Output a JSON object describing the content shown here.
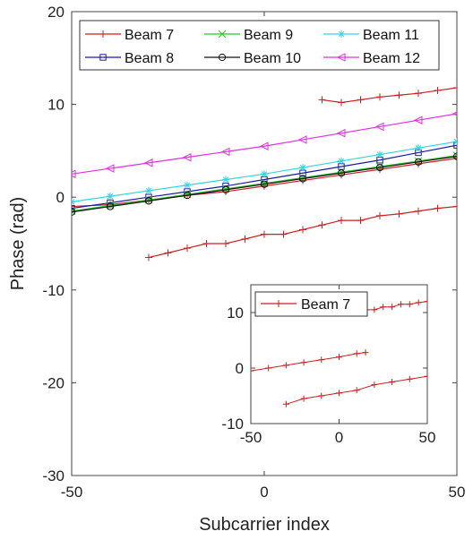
{
  "chart_data": [
    {
      "type": "line",
      "title": "",
      "xlabel": "Subcarrier index",
      "ylabel": "Phase (rad)",
      "xlim": [
        -50,
        50
      ],
      "ylim": [
        -30,
        20
      ],
      "xticks": [
        "-50",
        "0",
        "50"
      ],
      "yticks": [
        "-30",
        "-20",
        "-10",
        "0",
        "10",
        "20"
      ],
      "legend_position": "top",
      "grid": false,
      "series": [
        {
          "name": "Beam 7",
          "color": "#cc1f1f",
          "marker": "plus",
          "segments": [
            {
              "x": [
                -50,
                -40,
                -30,
                -20,
                -10,
                0,
                10,
                20,
                30,
                40,
                50
              ],
              "y": [
                -1,
                -0.8,
                -0.3,
                0.2,
                0.6,
                1.2,
                1.8,
                2.4,
                3.0,
                3.6,
                4.2
              ]
            },
            {
              "x": [
                -30,
                -25,
                -20,
                -15,
                -10,
                -5,
                0,
                5,
                10,
                15,
                20,
                25,
                30,
                35,
                40,
                45,
                50
              ],
              "y": [
                -6.5,
                -6,
                -5.5,
                -5,
                -5,
                -4.5,
                -4,
                -4,
                -3.5,
                -3,
                -2.5,
                -2.5,
                -2,
                -1.8,
                -1.5,
                -1.2,
                -1
              ]
            },
            {
              "x": [
                15,
                20,
                25,
                30,
                35,
                40,
                45,
                50
              ],
              "y": [
                10.5,
                10.2,
                10.5,
                10.8,
                11,
                11.2,
                11.5,
                11.8
              ]
            }
          ]
        },
        {
          "name": "Beam 8",
          "color": "#1a1aa6",
          "marker": "square",
          "segments": [
            {
              "x": [
                -50,
                -40,
                -30,
                -20,
                -10,
                0,
                10,
                20,
                30,
                40,
                50
              ],
              "y": [
                -1.2,
                -0.6,
                0,
                0.6,
                1.2,
                1.9,
                2.6,
                3.3,
                4.0,
                4.8,
                5.6
              ]
            }
          ]
        },
        {
          "name": "Beam 9",
          "color": "#2ec22e",
          "marker": "x",
          "segments": [
            {
              "x": [
                -50,
                -40,
                -30,
                -20,
                -10,
                0,
                10,
                20,
                30,
                40,
                50
              ],
              "y": [
                -1.5,
                -0.9,
                -0.3,
                0.3,
                0.9,
                1.5,
                2.1,
                2.7,
                3.3,
                3.9,
                4.5
              ]
            }
          ]
        },
        {
          "name": "Beam 10",
          "color": "#111111",
          "marker": "circle",
          "segments": [
            {
              "x": [
                -50,
                -40,
                -30,
                -20,
                -10,
                0,
                10,
                20,
                30,
                40,
                50
              ],
              "y": [
                -1.6,
                -1.0,
                -0.4,
                0.2,
                0.8,
                1.4,
                2.0,
                2.6,
                3.2,
                3.8,
                4.4
              ]
            }
          ]
        },
        {
          "name": "Beam 11",
          "color": "#2fd6e0",
          "marker": "star",
          "segments": [
            {
              "x": [
                -50,
                -40,
                -30,
                -20,
                -10,
                0,
                10,
                20,
                30,
                40,
                50
              ],
              "y": [
                -0.5,
                0.1,
                0.7,
                1.3,
                1.9,
                2.5,
                3.2,
                3.9,
                4.6,
                5.3,
                6.0
              ]
            }
          ]
        },
        {
          "name": "Beam 12",
          "color": "#e030e0",
          "marker": "triangle-left",
          "segments": [
            {
              "x": [
                -50,
                -40,
                -30,
                -20,
                -10,
                0,
                10,
                20,
                30,
                40,
                50
              ],
              "y": [
                2.5,
                3.1,
                3.7,
                4.3,
                4.9,
                5.5,
                6.2,
                6.9,
                7.6,
                8.3,
                9.0
              ]
            }
          ]
        }
      ]
    },
    {
      "type": "line",
      "title": "",
      "xlabel": "",
      "ylabel": "",
      "xlim": [
        -50,
        50
      ],
      "ylim": [
        -10,
        15
      ],
      "xticks": [
        "-50",
        "0",
        "50"
      ],
      "yticks": [
        "-10",
        "0",
        "10"
      ],
      "legend_position": "top-left",
      "grid": false,
      "series": [
        {
          "name": "Beam 7",
          "color": "#cc1f1f",
          "marker": "plus",
          "segments": [
            {
              "x": [
                -50,
                -40,
                -30,
                -20,
                -10,
                0,
                10,
                15
              ],
              "y": [
                -0.5,
                0,
                0.5,
                1.0,
                1.5,
                2.0,
                2.6,
                2.8
              ]
            },
            {
              "x": [
                -30,
                -20,
                -10,
                0,
                10,
                20,
                30,
                40,
                50
              ],
              "y": [
                -6.5,
                -5.5,
                -5,
                -4.5,
                -4,
                -3,
                -2.5,
                -2,
                -1.5
              ]
            },
            {
              "x": [
                15,
                20,
                25,
                30,
                35,
                40,
                45,
                50
              ],
              "y": [
                10.5,
                10.5,
                11,
                11,
                11.5,
                11.5,
                11.8,
                12
              ]
            }
          ]
        }
      ]
    }
  ]
}
